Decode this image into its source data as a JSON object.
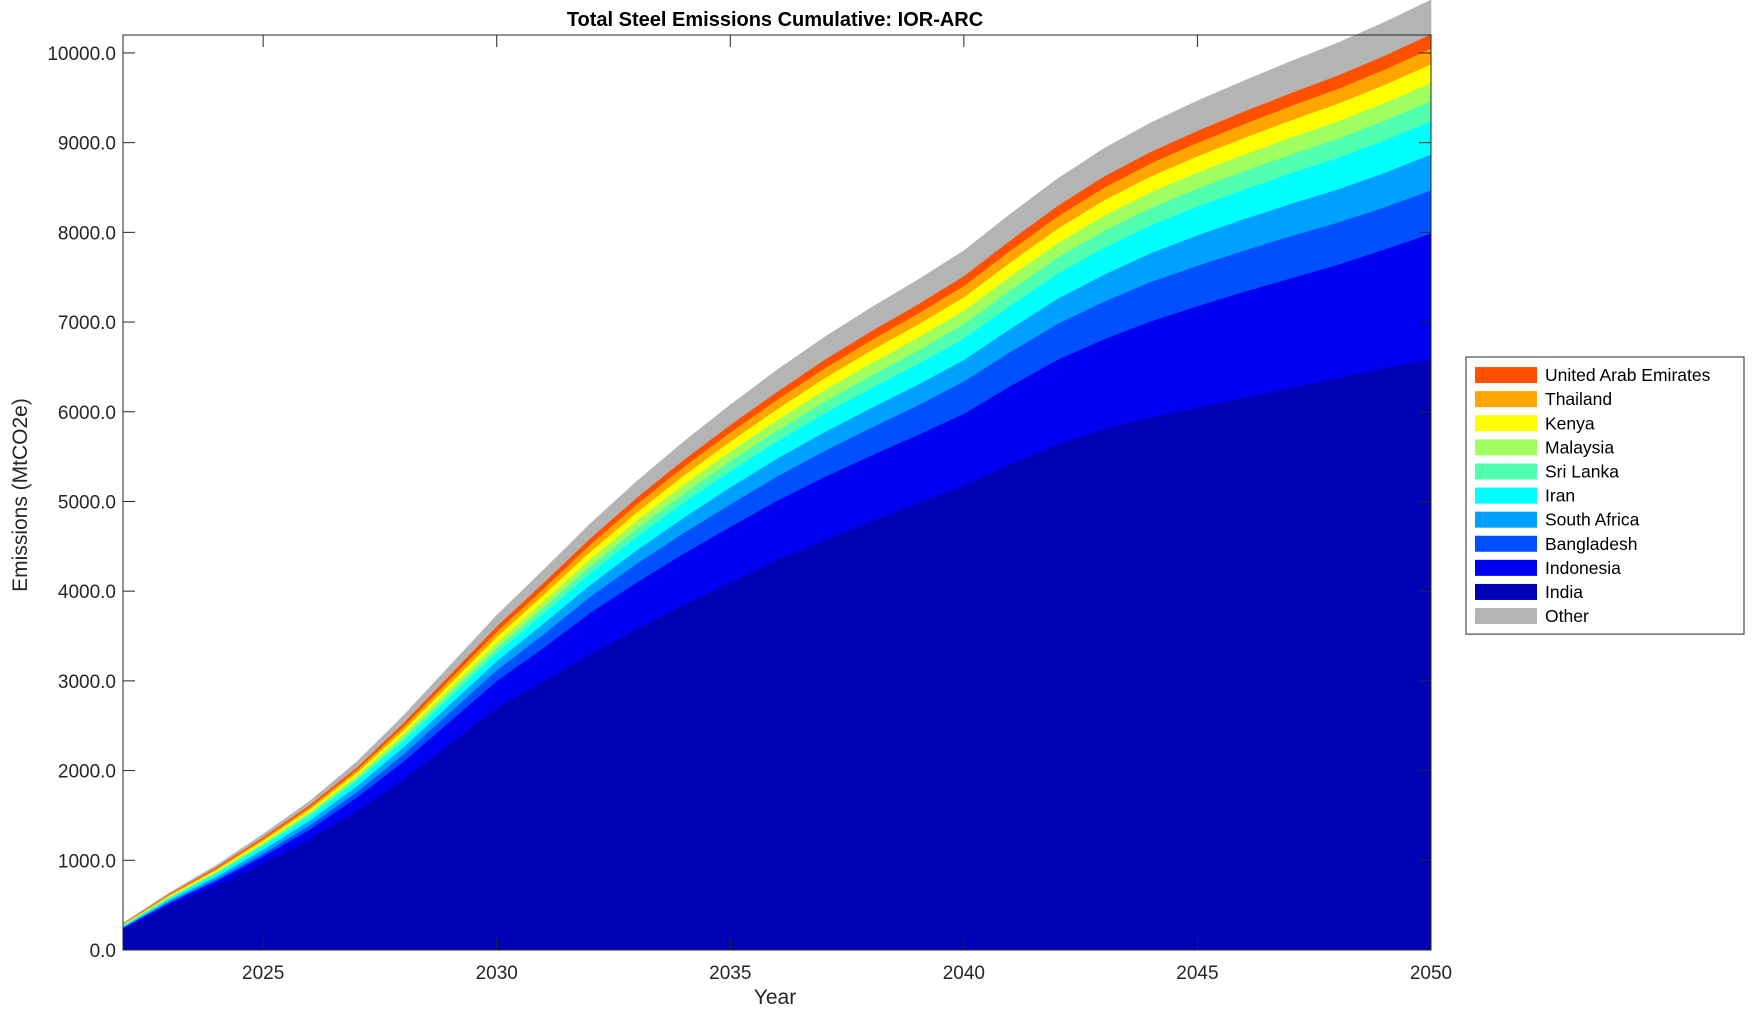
{
  "chart_data": {
    "type": "area",
    "stacked": true,
    "title": "Total Steel Emissions Cumulative: IOR-ARC",
    "xlabel": "Year",
    "ylabel": "Emissions (MtCO2e)",
    "xlim": [
      2022,
      2050
    ],
    "ylim": [
      0,
      10200
    ],
    "x_ticks": [
      {
        "value": 2025,
        "label": "2025"
      },
      {
        "value": 2030,
        "label": "2030"
      },
      {
        "value": 2035,
        "label": "2035"
      },
      {
        "value": 2040,
        "label": "2040"
      },
      {
        "value": 2045,
        "label": "2045"
      },
      {
        "value": 2050,
        "label": "2050"
      }
    ],
    "y_ticks": [
      {
        "value": 0,
        "label": "0.0"
      },
      {
        "value": 1000,
        "label": "1000.0"
      },
      {
        "value": 2000,
        "label": "2000.0"
      },
      {
        "value": 3000,
        "label": "3000.0"
      },
      {
        "value": 4000,
        "label": "4000.0"
      },
      {
        "value": 5000,
        "label": "5000.0"
      },
      {
        "value": 6000,
        "label": "6000.0"
      },
      {
        "value": 7000,
        "label": "7000.0"
      },
      {
        "value": 8000,
        "label": "8000.0"
      },
      {
        "value": 9000,
        "label": "9000.0"
      },
      {
        "value": 10000,
        "label": "10000.0"
      }
    ],
    "grid": false,
    "legend_position": "right",
    "x": [
      2022,
      2023,
      2024,
      2025,
      2026,
      2027,
      2028,
      2029,
      2030,
      2031,
      2032,
      2033,
      2034,
      2035,
      2036,
      2037,
      2038,
      2039,
      2040,
      2041,
      2042,
      2043,
      2044,
      2045,
      2046,
      2047,
      2048,
      2049,
      2050
    ],
    "series": [
      {
        "name": "India",
        "color": "#0000B4",
        "values": [
          230,
          500,
          720,
          970,
          1240,
          1550,
          1900,
          2300,
          2700,
          3000,
          3300,
          3580,
          3850,
          4100,
          4350,
          4570,
          4780,
          4980,
          5180,
          5420,
          5640,
          5810,
          5940,
          6050,
          6160,
          6270,
          6380,
          6490,
          6590
        ]
      },
      {
        "name": "Indonesia",
        "color": "#0000F0",
        "values": [
          15,
          30,
          50,
          75,
          105,
          150,
          200,
          250,
          300,
          370,
          460,
          520,
          570,
          620,
          660,
          700,
          730,
          760,
          800,
          870,
          940,
          1000,
          1070,
          1130,
          1180,
          1220,
          1260,
          1320,
          1400
        ]
      },
      {
        "name": "Bangladesh",
        "color": "#0050FF",
        "values": [
          5,
          10,
          20,
          30,
          45,
          60,
          80,
          100,
          120,
          150,
          180,
          210,
          230,
          250,
          270,
          290,
          310,
          330,
          360,
          380,
          400,
          420,
          440,
          450,
          460,
          470,
          470,
          470,
          480
        ]
      },
      {
        "name": "South Africa",
        "color": "#00A0FF",
        "values": [
          10,
          20,
          30,
          45,
          55,
          65,
          80,
          90,
          100,
          120,
          130,
          150,
          170,
          190,
          200,
          210,
          220,
          230,
          240,
          260,
          280,
          300,
          320,
          340,
          350,
          360,
          370,
          385,
          400
        ]
      },
      {
        "name": "Iran",
        "color": "#00FFFF",
        "values": [
          10,
          20,
          30,
          40,
          50,
          60,
          70,
          80,
          90,
          110,
          130,
          150,
          170,
          180,
          190,
          210,
          220,
          230,
          240,
          260,
          280,
          300,
          310,
          320,
          330,
          340,
          350,
          360,
          370
        ]
      },
      {
        "name": "Sri Lanka",
        "color": "#50FFB0",
        "values": [
          5,
          10,
          15,
          20,
          25,
          30,
          40,
          50,
          60,
          70,
          80,
          90,
          100,
          110,
          120,
          130,
          140,
          150,
          160,
          170,
          180,
          190,
          195,
          200,
          205,
          210,
          215,
          220,
          225
        ]
      },
      {
        "name": "Malaysia",
        "color": "#A0FF60",
        "values": [
          5,
          10,
          15,
          20,
          25,
          30,
          40,
          50,
          60,
          70,
          80,
          90,
          100,
          110,
          120,
          130,
          140,
          145,
          150,
          155,
          160,
          170,
          175,
          180,
          185,
          190,
          195,
          200,
          205
        ]
      },
      {
        "name": "Kenya",
        "color": "#FFFF00",
        "values": [
          5,
          10,
          15,
          20,
          25,
          30,
          40,
          50,
          60,
          70,
          80,
          90,
          100,
          110,
          120,
          130,
          140,
          145,
          150,
          155,
          160,
          170,
          175,
          180,
          185,
          190,
          195,
          200,
          205
        ]
      },
      {
        "name": "Thailand",
        "color": "#FFA500",
        "values": [
          5,
          10,
          15,
          20,
          25,
          30,
          40,
          50,
          60,
          70,
          80,
          90,
          95,
          100,
          105,
          110,
          115,
          120,
          125,
          130,
          135,
          140,
          145,
          150,
          155,
          160,
          165,
          170,
          175
        ]
      },
      {
        "name": "United Arab Emirates",
        "color": "#FF5000",
        "values": [
          5,
          10,
          15,
          20,
          25,
          30,
          40,
          50,
          60,
          65,
          70,
          75,
          80,
          85,
          90,
          95,
          100,
          105,
          110,
          115,
          120,
          125,
          130,
          135,
          140,
          145,
          150,
          155,
          160
        ]
      },
      {
        "name": "Other",
        "color": "#B4B4B4",
        "values": [
          5,
          10,
          20,
          30,
          40,
          60,
          80,
          100,
          120,
          140,
          160,
          180,
          200,
          220,
          240,
          250,
          260,
          270,
          280,
          290,
          300,
          310,
          320,
          330,
          340,
          350,
          360,
          370,
          380
        ]
      }
    ],
    "legend_order": [
      "United Arab Emirates",
      "Thailand",
      "Kenya",
      "Malaysia",
      "Sri Lanka",
      "Iran",
      "South Africa",
      "Bangladesh",
      "Indonesia",
      "India",
      "Other"
    ]
  }
}
